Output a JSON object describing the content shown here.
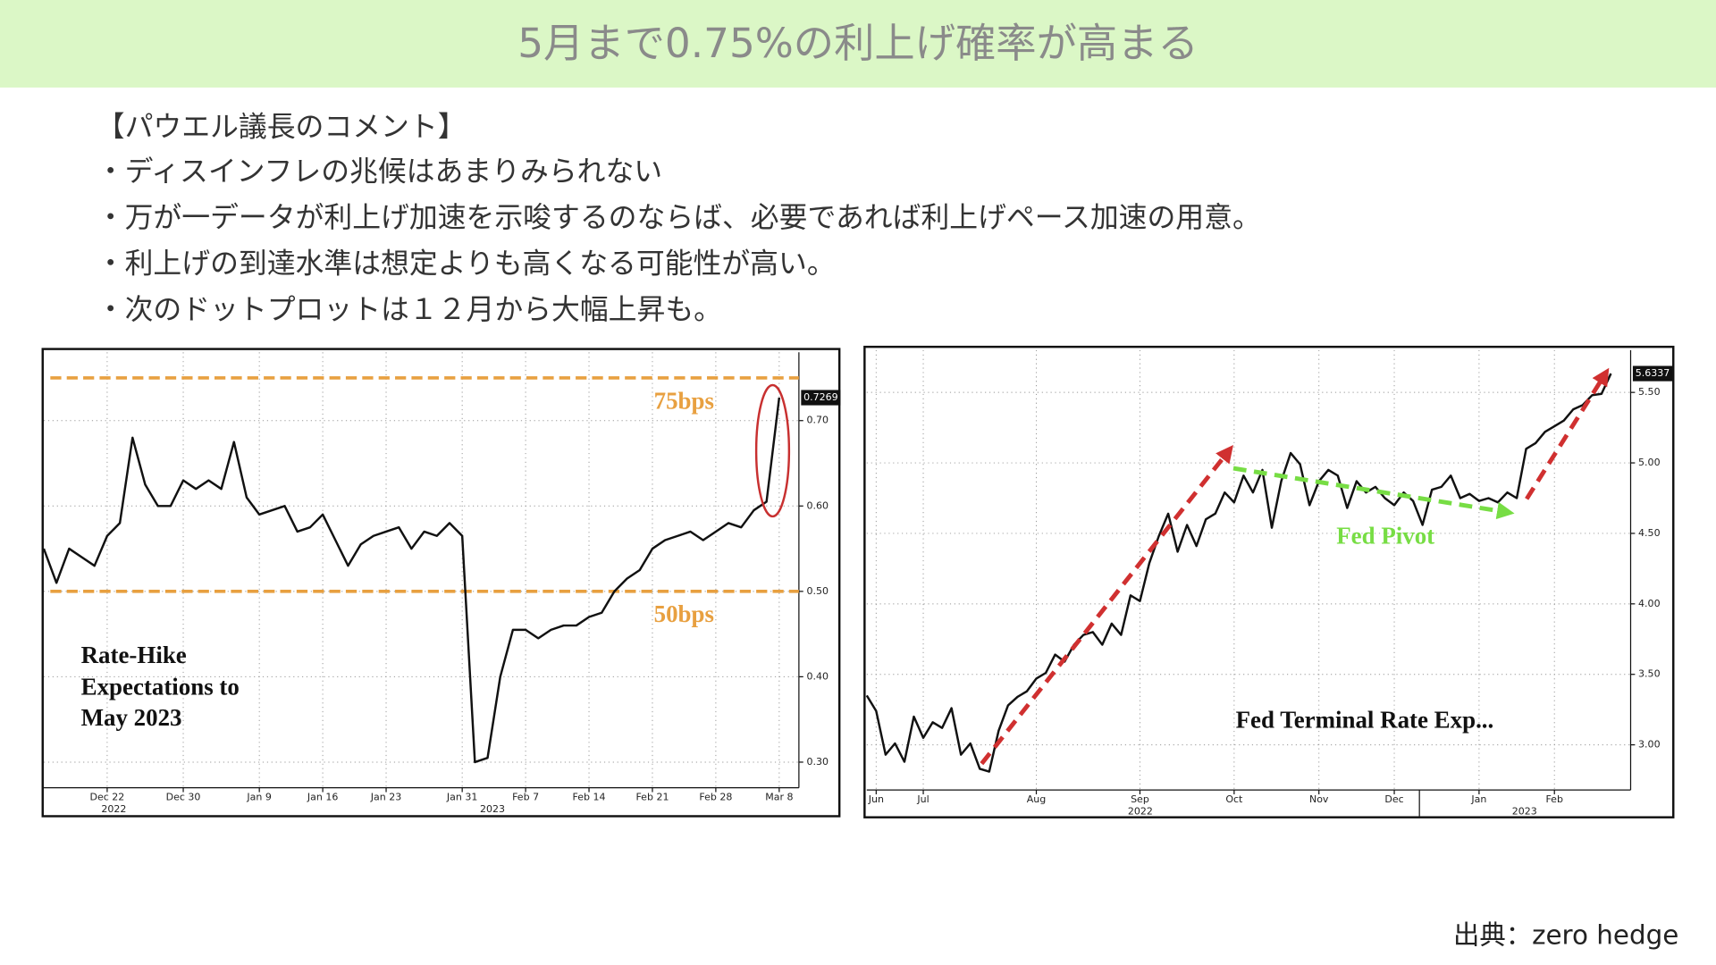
{
  "title": "5月まで0.75%の利上げ確率が高まる",
  "bullets": [
    "【パウエル議長のコメント】",
    "・ディスインフレの兆候はあまりみられない",
    "・万が一データが利上げ加速を示唆するのならば、必要であれば利上げペース加速の用意。",
    "・利上げの到達水準は想定よりも高くなる可能性が高い。",
    "・次のドットプロットは１２月から大幅上昇も。"
  ],
  "source": "出典：zero hedge",
  "chart_data": [
    {
      "type": "line",
      "annotations": [
        "Rate-Hike",
        "Expectations to",
        "May 2023"
      ],
      "categories": [
        null,
        null,
        null,
        null,
        null,
        "Dec 22",
        null,
        null,
        null,
        null,
        null,
        "Dec 30",
        null,
        null,
        null,
        null,
        null,
        "Jan 9",
        null,
        null,
        null,
        null,
        "Jan 16",
        null,
        null,
        null,
        null,
        "Jan 23",
        null,
        null,
        null,
        null,
        null,
        "Jan 31",
        null,
        null,
        null,
        null,
        "Feb 7",
        null,
        null,
        null,
        null,
        "Feb 14",
        null,
        null,
        null,
        null,
        "Feb 21",
        null,
        null,
        null,
        null,
        "Feb 28",
        null,
        null,
        null,
        null,
        "Mar 8"
      ],
      "year_labels": [
        "2022",
        "2023"
      ],
      "series": [
        {
          "color": "#111111",
          "values": [
            0.55,
            0.51,
            0.55,
            0.54,
            0.53,
            0.565,
            0.58,
            0.68,
            0.625,
            0.6,
            0.6,
            0.63,
            0.62,
            0.63,
            0.62,
            0.675,
            0.61,
            0.59,
            0.595,
            0.6,
            0.57,
            0.575,
            0.59,
            0.56,
            0.53,
            0.555,
            0.565,
            0.57,
            0.575,
            0.55,
            0.57,
            0.565,
            0.58,
            0.565,
            0.3,
            0.305,
            0.4,
            0.455,
            0.455,
            0.445,
            0.455,
            0.46,
            0.46,
            0.47,
            0.475,
            0.5,
            0.515,
            0.525,
            0.55,
            0.56,
            0.565,
            0.57,
            0.56,
            0.57,
            0.58,
            0.575,
            0.595,
            0.605,
            0.7269
          ]
        }
      ],
      "reference_lines": [
        {
          "value": 0.75,
          "label": "75bps",
          "color": "#e8a040"
        },
        {
          "value": 0.5,
          "label": "50bps",
          "color": "#e8a040"
        }
      ],
      "ylim": [
        0.27,
        0.78
      ],
      "yticks": [
        {
          "value": 0.3,
          "label": "0.30"
        },
        {
          "value": 0.4,
          "label": "0.40"
        },
        {
          "value": 0.5,
          "label": "0.50"
        },
        {
          "value": 0.6,
          "label": "0.60"
        },
        {
          "value": 0.7,
          "label": "0.70"
        }
      ],
      "grid": true
    },
    {
      "type": "line",
      "annotations": [
        "Fed Pivot",
        "Fed Terminal Rate Exp..."
      ],
      "categories": [
        null,
        "Jun",
        null,
        null,
        null,
        null,
        "Jul",
        null,
        null,
        null,
        null,
        null,
        null,
        null,
        null,
        null,
        null,
        null,
        "Aug",
        null,
        null,
        null,
        null,
        null,
        null,
        null,
        null,
        null,
        null,
        "Sep",
        null,
        null,
        null,
        null,
        null,
        null,
        null,
        null,
        null,
        "Oct",
        null,
        null,
        null,
        null,
        null,
        null,
        null,
        null,
        "Nov",
        null,
        null,
        null,
        null,
        null,
        null,
        null,
        "Dec",
        null,
        null,
        null,
        null,
        null,
        null,
        null,
        null,
        "Jan",
        null,
        null,
        null,
        null,
        null,
        null,
        null,
        "Feb",
        null,
        null,
        null,
        null,
        null,
        null
      ],
      "year_labels": [
        "2022",
        "2023"
      ],
      "series": [
        {
          "color": "#111111",
          "values": [
            3.35,
            3.24,
            2.93,
            3.01,
            2.88,
            3.2,
            3.05,
            3.16,
            3.12,
            3.26,
            2.93,
            3.01,
            2.83,
            2.81,
            3.1,
            3.28,
            3.34,
            3.38,
            3.47,
            3.51,
            3.64,
            3.59,
            3.71,
            3.78,
            3.8,
            3.71,
            3.86,
            3.78,
            4.06,
            4.02,
            4.29,
            4.48,
            4.64,
            4.37,
            4.56,
            4.41,
            4.6,
            4.64,
            4.79,
            4.72,
            4.91,
            4.79,
            4.95,
            4.54,
            4.87,
            5.07,
            4.99,
            4.7,
            4.87,
            4.95,
            4.91,
            4.68,
            4.87,
            4.79,
            4.83,
            4.75,
            4.7,
            4.79,
            4.73,
            4.56,
            4.81,
            4.83,
            4.91,
            4.75,
            4.78,
            4.73,
            4.75,
            4.72,
            4.79,
            4.75,
            5.1,
            5.14,
            5.22,
            5.26,
            5.3,
            5.38,
            5.41,
            5.48,
            5.49,
            5.6337
          ]
        }
      ],
      "ylim": [
        2.68,
        5.8
      ],
      "yticks": [
        {
          "value": 3,
          "label": "3.00"
        },
        {
          "value": 3.5,
          "label": "3.50"
        },
        {
          "value": 4,
          "label": "4.00"
        },
        {
          "value": 4.5,
          "label": "4.50"
        },
        {
          "value": 5,
          "label": "5.00"
        },
        {
          "value": 5.5,
          "label": "5.50"
        }
      ],
      "grid": true
    }
  ]
}
